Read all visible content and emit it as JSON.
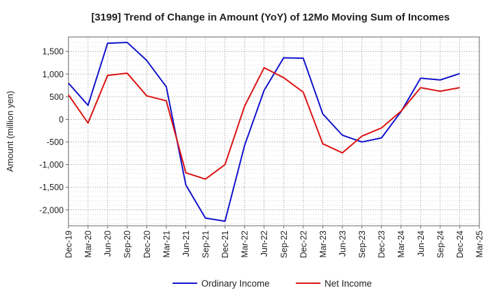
{
  "chart_data": {
    "type": "line",
    "title": "[3199]  Trend of Change in Amount (YoY) of 12Mo Moving Sum of Incomes",
    "xlabel": "",
    "ylabel": "Amount (million yen)",
    "ylim": [
      -2350,
      1820
    ],
    "yticks": [
      1500,
      1000,
      500,
      0,
      -500,
      -1000,
      -1500,
      -2000
    ],
    "ytick_labels": [
      "1,500",
      "1,000",
      "500",
      "0",
      "-500",
      "-1,000",
      "-1,500",
      "-2,000"
    ],
    "x_tick_labels": [
      "Dec-19",
      "Mar-20",
      "Jun-20",
      "Sep-20",
      "Dec-20",
      "Mar-21",
      "Jun-21",
      "Sep-21",
      "Dec-21",
      "Mar-22",
      "Jun-22",
      "Sep-22",
      "Dec-22",
      "Mar-23",
      "Jun-23",
      "Sep-23",
      "Dec-23",
      "Mar-24",
      "Jun-24",
      "Sep-24",
      "Dec-24",
      "Mar-25"
    ],
    "grid": true,
    "legend_position": "bottom",
    "series": [
      {
        "name": "Ordinary Income",
        "color": "#1111cc",
        "values": [
          800,
          310,
          1680,
          1700,
          1300,
          720,
          -1450,
          -2180,
          -2250,
          -580,
          640,
          1360,
          1350,
          120,
          -350,
          -500,
          -410,
          170,
          910,
          870,
          1010,
          null
        ]
      },
      {
        "name": "Net Income",
        "color": "#dd1111",
        "values": [
          540,
          -80,
          970,
          1020,
          520,
          410,
          -1180,
          -1320,
          -1000,
          290,
          1140,
          920,
          600,
          -540,
          -740,
          -370,
          -190,
          180,
          700,
          620,
          700,
          null
        ]
      }
    ]
  }
}
